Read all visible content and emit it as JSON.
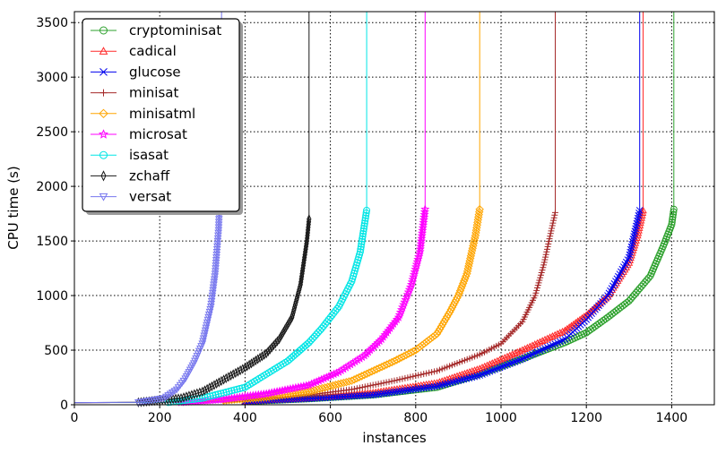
{
  "chart_data": {
    "type": "line",
    "title": "",
    "xlabel": "instances",
    "ylabel": "CPU time (s)",
    "xlim": [
      0,
      1500
    ],
    "ylim": [
      0,
      3600
    ],
    "xticks": [
      0,
      200,
      400,
      600,
      800,
      1000,
      1200,
      1400
    ],
    "yticks": [
      0,
      500,
      1000,
      1500,
      2000,
      2500,
      3000,
      3500
    ],
    "grid": true,
    "legend_position": "top-left",
    "series": [
      {
        "name": "cryptominisat",
        "color": "#2ca02c",
        "marker": "circle",
        "points": [
          [
            0,
            20
          ],
          [
            250,
            22
          ],
          [
            400,
            30
          ],
          [
            550,
            55
          ],
          [
            700,
            90
          ],
          [
            850,
            160
          ],
          [
            950,
            280
          ],
          [
            1050,
            420
          ],
          [
            1150,
            570
          ],
          [
            1200,
            660
          ],
          [
            1250,
            800
          ],
          [
            1300,
            950
          ],
          [
            1350,
            1180
          ],
          [
            1380,
            1450
          ],
          [
            1400,
            1650
          ],
          [
            1405,
            1790
          ],
          [
            1405,
            3600
          ]
        ]
      },
      {
        "name": "cadical",
        "color": "#ff2a2a",
        "marker": "triangle",
        "points": [
          [
            0,
            20
          ],
          [
            250,
            22
          ],
          [
            400,
            32
          ],
          [
            550,
            60
          ],
          [
            700,
            110
          ],
          [
            850,
            200
          ],
          [
            950,
            330
          ],
          [
            1050,
            500
          ],
          [
            1150,
            680
          ],
          [
            1200,
            820
          ],
          [
            1250,
            990
          ],
          [
            1300,
            1300
          ],
          [
            1320,
            1550
          ],
          [
            1333,
            1780
          ],
          [
            1333,
            3600
          ]
        ]
      },
      {
        "name": "glucose",
        "color": "#0000ee",
        "marker": "x",
        "points": [
          [
            0,
            20
          ],
          [
            250,
            22
          ],
          [
            400,
            30
          ],
          [
            550,
            55
          ],
          [
            700,
            90
          ],
          [
            850,
            170
          ],
          [
            950,
            270
          ],
          [
            1050,
            420
          ],
          [
            1150,
            600
          ],
          [
            1200,
            780
          ],
          [
            1250,
            1000
          ],
          [
            1300,
            1350
          ],
          [
            1325,
            1780
          ],
          [
            1325,
            3600
          ]
        ]
      },
      {
        "name": "minisat",
        "color": "#a52a2a",
        "marker": "plus",
        "points": [
          [
            0,
            20
          ],
          [
            250,
            22
          ],
          [
            350,
            40
          ],
          [
            450,
            60
          ],
          [
            550,
            90
          ],
          [
            650,
            140
          ],
          [
            750,
            220
          ],
          [
            850,
            310
          ],
          [
            950,
            460
          ],
          [
            1000,
            560
          ],
          [
            1050,
            760
          ],
          [
            1080,
            1000
          ],
          [
            1100,
            1280
          ],
          [
            1127,
            1760
          ],
          [
            1127,
            3600
          ]
        ]
      },
      {
        "name": "minisatml",
        "color": "#ffa500",
        "marker": "diamond",
        "points": [
          [
            0,
            20
          ],
          [
            250,
            22
          ],
          [
            350,
            40
          ],
          [
            450,
            70
          ],
          [
            550,
            120
          ],
          [
            650,
            220
          ],
          [
            750,
            400
          ],
          [
            800,
            500
          ],
          [
            850,
            650
          ],
          [
            880,
            850
          ],
          [
            900,
            1000
          ],
          [
            920,
            1200
          ],
          [
            940,
            1550
          ],
          [
            950,
            1790
          ],
          [
            950,
            3600
          ]
        ]
      },
      {
        "name": "microsat",
        "color": "#ff00ff",
        "marker": "star",
        "points": [
          [
            0,
            20
          ],
          [
            250,
            22
          ],
          [
            350,
            50
          ],
          [
            450,
            100
          ],
          [
            550,
            180
          ],
          [
            620,
            300
          ],
          [
            680,
            450
          ],
          [
            720,
            600
          ],
          [
            760,
            800
          ],
          [
            790,
            1100
          ],
          [
            810,
            1400
          ],
          [
            822,
            1790
          ],
          [
            822,
            3600
          ]
        ]
      },
      {
        "name": "isasat",
        "color": "#00e5e5",
        "marker": "circle",
        "points": [
          [
            0,
            20
          ],
          [
            220,
            22
          ],
          [
            300,
            60
          ],
          [
            400,
            160
          ],
          [
            450,
            280
          ],
          [
            500,
            400
          ],
          [
            550,
            570
          ],
          [
            580,
            700
          ],
          [
            620,
            900
          ],
          [
            650,
            1130
          ],
          [
            670,
            1400
          ],
          [
            685,
            1780
          ],
          [
            685,
            3600
          ]
        ]
      },
      {
        "name": "zchaff",
        "color": "#1a1a1a",
        "marker": "thin_diamond",
        "points": [
          [
            0,
            20
          ],
          [
            150,
            22
          ],
          [
            250,
            60
          ],
          [
            300,
            120
          ],
          [
            350,
            230
          ],
          [
            400,
            340
          ],
          [
            450,
            470
          ],
          [
            480,
            600
          ],
          [
            510,
            800
          ],
          [
            530,
            1100
          ],
          [
            545,
            1500
          ],
          [
            550,
            1700
          ],
          [
            550,
            3600
          ]
        ]
      },
      {
        "name": "versat",
        "color": "#7777ee",
        "marker": "triangle_down",
        "points": [
          [
            0,
            20
          ],
          [
            150,
            22
          ],
          [
            210,
            60
          ],
          [
            240,
            140
          ],
          [
            260,
            240
          ],
          [
            280,
            380
          ],
          [
            300,
            560
          ],
          [
            320,
            900
          ],
          [
            330,
            1200
          ],
          [
            338,
            1600
          ],
          [
            343,
            2100
          ],
          [
            345,
            3600
          ]
        ]
      }
    ]
  }
}
